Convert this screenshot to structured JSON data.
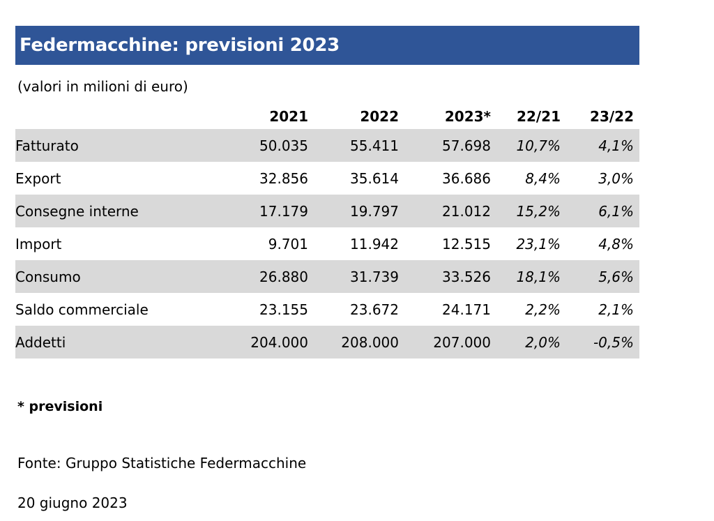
{
  "banner": {
    "title": "Federmacchine: previsioni 2023"
  },
  "subtitle": "(valori in milioni di euro)",
  "chart_data": {
    "type": "table",
    "title": "Federmacchine: previsioni 2023",
    "subtitle": "(valori in milioni di euro)",
    "columns": [
      "2021",
      "2022",
      "2023*",
      "22/21",
      "23/22"
    ],
    "rows": [
      {
        "label": "Fatturato",
        "values": [
          "50.035",
          "55.411",
          "57.698",
          "10,7%",
          "4,1%"
        ],
        "shaded": true
      },
      {
        "label": "Export",
        "values": [
          "32.856",
          "35.614",
          "36.686",
          "8,4%",
          "3,0%"
        ],
        "shaded": false
      },
      {
        "label": "Consegne interne",
        "values": [
          "17.179",
          "19.797",
          "21.012",
          "15,2%",
          "6,1%"
        ],
        "shaded": true
      },
      {
        "label": "Import",
        "values": [
          "9.701",
          "11.942",
          "12.515",
          "23,1%",
          "4,8%"
        ],
        "shaded": false
      },
      {
        "label": "Consumo",
        "values": [
          "26.880",
          "31.739",
          "33.526",
          "18,1%",
          "5,6%"
        ],
        "shaded": true
      },
      {
        "label": "Saldo commerciale",
        "values": [
          "23.155",
          "23.672",
          "24.171",
          "2,2%",
          "2,1%"
        ],
        "shaded": false
      },
      {
        "label": "Addetti",
        "values": [
          "204.000",
          "208.000",
          "207.000",
          "2,0%",
          "-0,5%"
        ],
        "shaded": true
      }
    ]
  },
  "footer": {
    "note": "* previsioni",
    "source": "Fonte: Gruppo Statistiche Federmacchine",
    "date": "20 giugno 2023"
  },
  "colors": {
    "banner": "#2f5597",
    "row_shade": "#d9d9d9"
  }
}
